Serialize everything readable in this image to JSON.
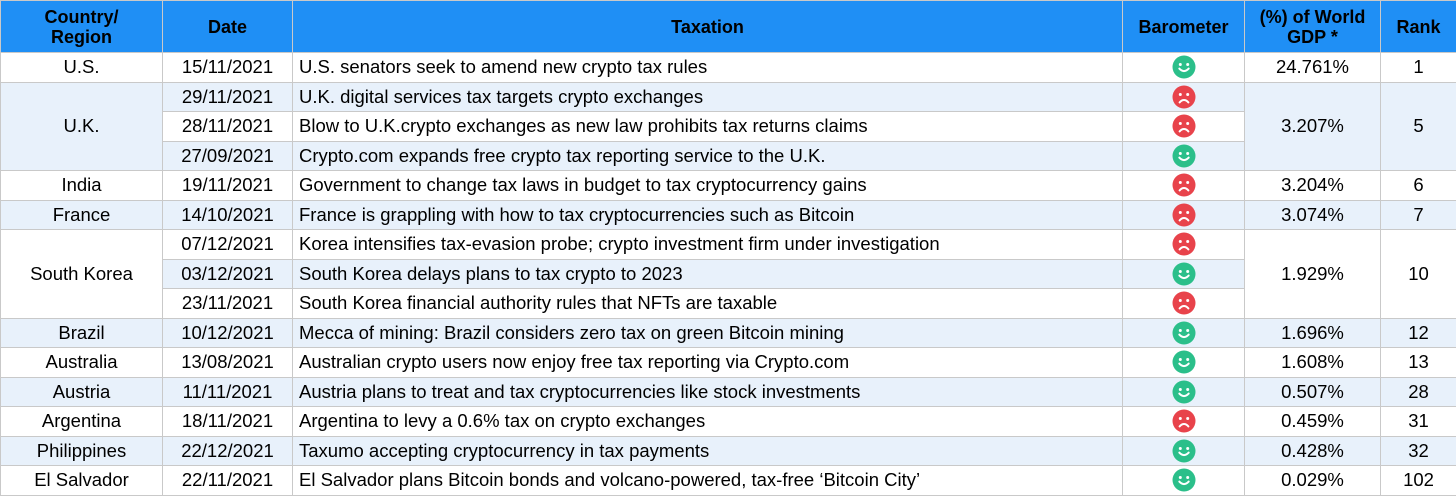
{
  "colors": {
    "header_bg": "#1f8ff5",
    "alt_row_bg": "#e8f1fb",
    "positive": "#2bbf8a",
    "negative": "#e8434b"
  },
  "headers": {
    "country_line1": "Country/",
    "country_line2": "Region",
    "date": "Date",
    "taxation": "Taxation",
    "barometer": "Barometer",
    "gdp_line1": "(%) of World",
    "gdp_line2": "GDP *",
    "rank": "Rank"
  },
  "groups": [
    {
      "country": "U.S.",
      "gdp": "24.761%",
      "rank": "1",
      "rows": [
        {
          "date": "15/11/2021",
          "text": "U.S. senators seek to amend new crypto tax rules",
          "barometer": "positive"
        }
      ]
    },
    {
      "country": "U.K.",
      "gdp": "3.207%",
      "rank": "5",
      "rows": [
        {
          "date": "29/11/2021",
          "text": "U.K. digital services tax targets crypto exchanges",
          "barometer": "negative"
        },
        {
          "date": "28/11/2021",
          "text": "Blow to U.K.crypto exchanges as new law prohibits tax returns claims",
          "barometer": "negative"
        },
        {
          "date": "27/09/2021",
          "text": "Crypto.com expands free crypto tax reporting service to the U.K.",
          "barometer": "positive"
        }
      ]
    },
    {
      "country": "India",
      "gdp": "3.204%",
      "rank": "6",
      "rows": [
        {
          "date": "19/11/2021",
          "text": "Government to change tax laws in budget to tax cryptocurrency gains",
          "barometer": "negative"
        }
      ]
    },
    {
      "country": "France",
      "gdp": "3.074%",
      "rank": "7",
      "rows": [
        {
          "date": "14/10/2021",
          "text": "France is grappling with how to tax cryptocurrencies such as Bitcoin",
          "barometer": "negative"
        }
      ]
    },
    {
      "country": "South Korea",
      "gdp": "1.929%",
      "rank": "10",
      "rows": [
        {
          "date": "07/12/2021",
          "text": "Korea intensifies tax-evasion probe; crypto investment firm under investigation",
          "barometer": "negative"
        },
        {
          "date": "03/12/2021",
          "text": "South Korea delays plans to tax crypto to 2023",
          "barometer": "positive"
        },
        {
          "date": "23/11/2021",
          "text": "South Korea financial authority rules that NFTs are taxable",
          "barometer": "negative"
        }
      ]
    },
    {
      "country": "Brazil",
      "gdp": "1.696%",
      "rank": "12",
      "rows": [
        {
          "date": "10/12/2021",
          "text": "Mecca of mining: Brazil considers zero tax on green Bitcoin mining",
          "barometer": "positive"
        }
      ]
    },
    {
      "country": "Australia",
      "gdp": "1.608%",
      "rank": "13",
      "rows": [
        {
          "date": "13/08/2021",
          "text": "Australian crypto users now enjoy free tax reporting via Crypto.com",
          "barometer": "positive"
        }
      ]
    },
    {
      "country": "Austria",
      "gdp": "0.507%",
      "rank": "28",
      "rows": [
        {
          "date": "11/11/2021",
          "text": "Austria plans to treat and tax cryptocurrencies like stock investments",
          "barometer": "positive"
        }
      ]
    },
    {
      "country": "Argentina",
      "gdp": "0.459%",
      "rank": "31",
      "rows": [
        {
          "date": "18/11/2021",
          "text": "Argentina to levy a 0.6% tax on crypto exchanges",
          "barometer": "negative"
        }
      ]
    },
    {
      "country": "Philippines",
      "gdp": "0.428%",
      "rank": "32",
      "rows": [
        {
          "date": "22/12/2021",
          "text": "Taxumo accepting cryptocurrency in tax payments",
          "barometer": "positive"
        }
      ]
    },
    {
      "country": "El Salvador",
      "gdp": "0.029%",
      "rank": "102",
      "rows": [
        {
          "date": "22/11/2021",
          "text": "El Salvador plans Bitcoin bonds and volcano-powered, tax-free ‘Bitcoin City’",
          "barometer": "positive"
        }
      ]
    }
  ]
}
